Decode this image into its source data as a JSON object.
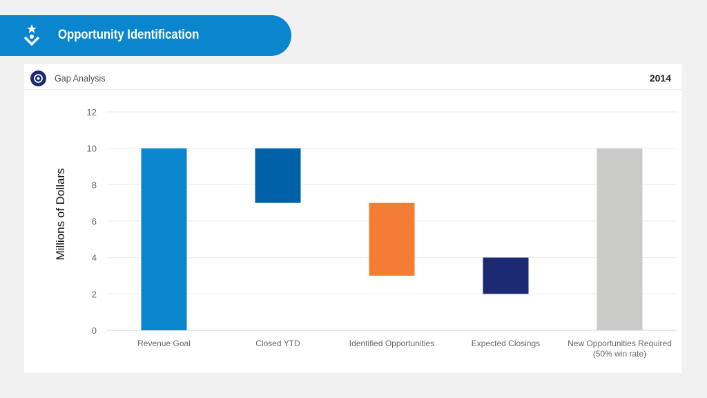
{
  "header": {
    "title": "Opportunity Identification",
    "icon": "person-star-icon"
  },
  "card": {
    "title": "Gap Analysis",
    "year": "2014",
    "icon": "target-icon"
  },
  "chart_data": {
    "type": "bar",
    "subtype": "floating-waterfall",
    "title": "Gap Analysis",
    "ylabel": "Millions of Dollars",
    "xlabel": "",
    "ylim": [
      0,
      12
    ],
    "yticks": [
      0,
      2,
      4,
      6,
      8,
      10,
      12
    ],
    "grid": true,
    "categories": [
      [
        "Revenue Goal"
      ],
      [
        "Closed YTD"
      ],
      [
        "Identified Opportunities"
      ],
      [
        "Expected Closings"
      ],
      [
        "New Opportunities Required",
        "(50% win rate)"
      ]
    ],
    "ranges": [
      [
        0,
        10
      ],
      [
        7,
        10
      ],
      [
        3,
        7
      ],
      [
        2,
        4
      ],
      [
        0,
        10
      ]
    ],
    "colors": [
      "#0a86cf",
      "#0060a8",
      "#f47c35",
      "#1b2a72",
      "#cbcbc9"
    ]
  }
}
